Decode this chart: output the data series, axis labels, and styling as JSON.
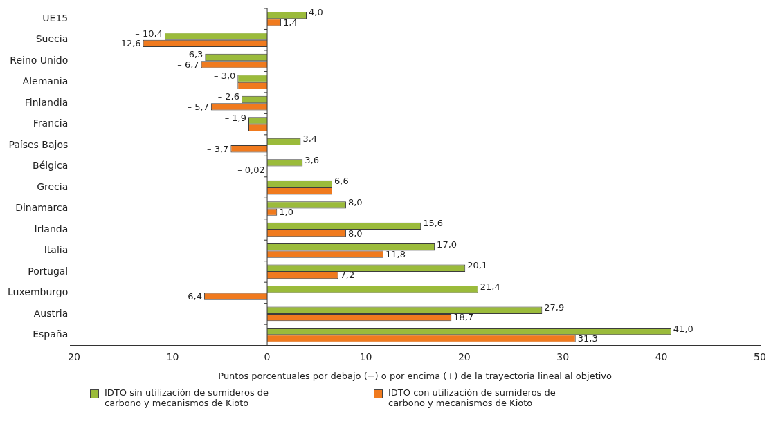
{
  "chart_data": {
    "type": "bar",
    "orientation": "horizontal",
    "xlabel": "Puntos porcentuales por debajo (−) o por encima (+) de la trayectoria lineal al objetivo",
    "categories": [
      "UE15",
      "Suecia",
      "Reino Unido",
      "Alemania",
      "Finlandia",
      "Francia",
      "Países Bajos",
      "Bélgica",
      "Grecia",
      "Dinamarca",
      "Irlanda",
      "Italia",
      "Portugal",
      "Luxemburgo",
      "Austria",
      "España"
    ],
    "series": [
      {
        "name": "IDTO sin utilización de sumideros de carbono y mecanismos de Kioto",
        "color": "#9bbb3b",
        "values": [
          4.0,
          -10.4,
          -6.3,
          -3.0,
          -2.6,
          -1.9,
          3.4,
          3.6,
          6.6,
          8.0,
          15.6,
          17.0,
          20.1,
          21.4,
          27.9,
          41.0
        ],
        "value_labels": [
          "4,0",
          "– 10,4",
          "– 6,3",
          "– 3,0",
          "– 2,6",
          "– 1,9",
          "3,4",
          "3,6",
          "6,6",
          "8,0",
          "15,6",
          "17,0",
          "20,1",
          "21,4",
          "27,9",
          "41,0"
        ]
      },
      {
        "name": "IDTO con utilización de sumideros de carbono y mecanismos de Kioto",
        "color": "#f07a1e",
        "values": [
          1.4,
          -12.6,
          -6.7,
          -3.0,
          -5.7,
          -1.9,
          -3.7,
          -0.02,
          6.6,
          1.0,
          8.0,
          11.8,
          7.2,
          -6.4,
          18.7,
          31.3
        ],
        "value_labels": [
          "1,4",
          "– 12,6",
          "– 6,7",
          null,
          "– 5,7",
          null,
          "– 3,7",
          "– 0,02",
          null,
          "1,0",
          "8,0",
          "11,8",
          "7,2",
          "– 6,4",
          "18,7",
          "31,3"
        ]
      }
    ],
    "xlim": [
      -20,
      50
    ],
    "xticks": [
      {
        "value": -20,
        "label": "– 20"
      },
      {
        "value": -10,
        "label": "– 10"
      },
      0,
      10,
      20,
      30,
      40,
      50
    ],
    "ref_lines": [
      {
        "axis": "x",
        "value": 0
      }
    ],
    "grid": false,
    "legend": "bottom"
  }
}
